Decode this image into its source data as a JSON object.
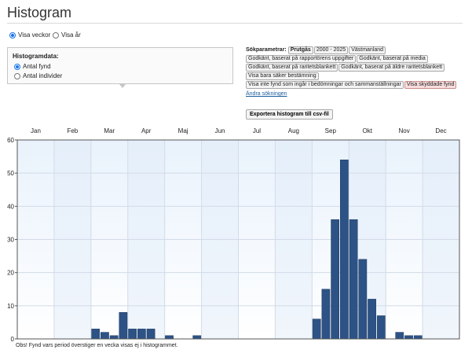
{
  "page": {
    "title": "Histogram"
  },
  "period": {
    "options": [
      {
        "label": "Visa veckor",
        "selected": true
      },
      {
        "label": "Visa år",
        "selected": false
      }
    ]
  },
  "histogram_data": {
    "label": "Histogramdata:",
    "options": [
      {
        "label": "Antal fynd",
        "selected": true
      },
      {
        "label": "Antal individer",
        "selected": false
      }
    ]
  },
  "search": {
    "label": "Sökparametrar:",
    "tags": [
      {
        "text": "Prutgås",
        "style": "bold"
      },
      {
        "text": "2000 - 2025",
        "style": ""
      },
      {
        "text": "Västmanland",
        "style": ""
      },
      {
        "text": "Godkänt, baserat på rapportörens uppgifter",
        "style": ""
      },
      {
        "text": "Godkänt, baserat på media",
        "style": ""
      },
      {
        "text": "Godkänt, baserat på raritetsblankett",
        "style": ""
      },
      {
        "text": "Godkänt, baserat på äldre raritetsblankett",
        "style": ""
      },
      {
        "text": "Visa bara säker bestämning",
        "style": ""
      },
      {
        "text": "Visa inte fynd som ingår i bedömningar och sammanställningar",
        "style": ""
      },
      {
        "text": "Visa skyddade fynd",
        "style": "red"
      }
    ],
    "change_link": "Ändra sökningen"
  },
  "export_button": "Exportera histogram till csv-fil",
  "chart_data": {
    "type": "bar",
    "months": [
      "Jan",
      "Feb",
      "Mar",
      "Apr",
      "Maj",
      "Jun",
      "Jul",
      "Aug",
      "Sep",
      "Okt",
      "Nov",
      "Dec"
    ],
    "weeks_per_month": 4,
    "values": [
      0,
      0,
      0,
      0,
      0,
      0,
      0,
      0,
      3,
      2,
      1,
      8,
      3,
      3,
      3,
      0,
      1,
      0,
      0,
      1,
      0,
      0,
      0,
      0,
      0,
      0,
      0,
      0,
      0,
      0,
      0,
      0,
      6,
      15,
      36,
      54,
      36,
      24,
      12,
      7,
      0,
      2,
      1,
      1,
      0,
      0,
      0,
      0
    ],
    "yticks": [
      0,
      10,
      20,
      30,
      40,
      50,
      60
    ],
    "ylim": [
      0,
      60
    ],
    "grid": true,
    "bar_color": "#2d5285"
  },
  "footnote": "Obs! Fynd vars period överstiger en vecka visas ej i histogrammet."
}
